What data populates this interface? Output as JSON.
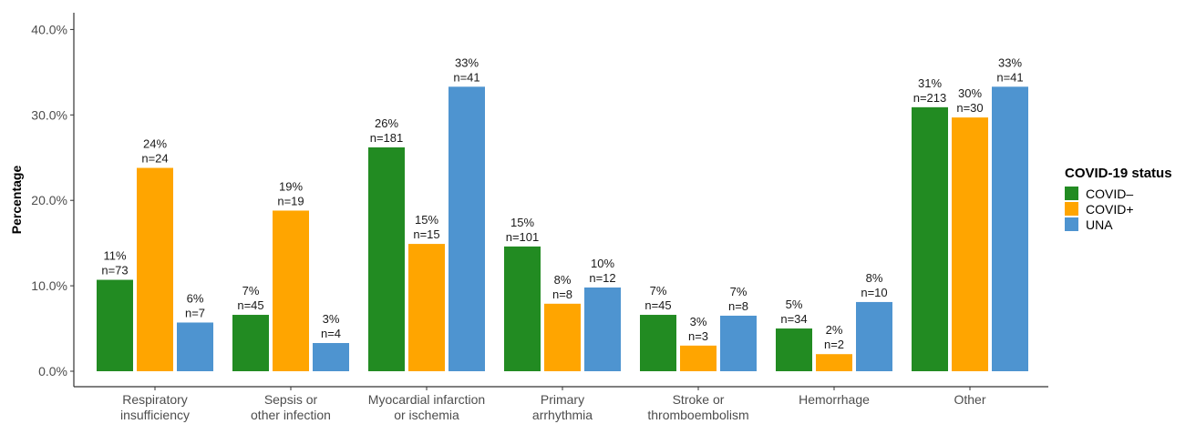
{
  "chart_data": {
    "type": "bar",
    "ylabel": "Percentage",
    "ylim": [
      0,
      42
    ],
    "yticks": [
      "0.0%",
      "10.0%",
      "20.0%",
      "30.0%",
      "40.0%"
    ],
    "categories": [
      [
        "Respiratory",
        "insufficiency"
      ],
      [
        "Sepsis or",
        "other infection"
      ],
      [
        "Myocardial infarction",
        "or ischemia"
      ],
      [
        "Primary",
        "arrhythmia"
      ],
      [
        "Stroke or",
        "thromboembolism"
      ],
      [
        "Hemorrhage"
      ],
      [
        "Other"
      ]
    ],
    "legend": {
      "title": "COVID-19 status",
      "position": "right"
    },
    "series": [
      {
        "name": "COVID–",
        "color": "#228B22",
        "values": [
          10.7,
          6.6,
          26.2,
          14.6,
          6.6,
          5.0,
          30.9
        ],
        "pct_labels": [
          "11%",
          "7%",
          "26%",
          "15%",
          "7%",
          "5%",
          "31%"
        ],
        "n_labels": [
          "n=73",
          "n=45",
          "n=181",
          "n=101",
          "n=45",
          "n=34",
          "n=213"
        ]
      },
      {
        "name": "COVID+",
        "color": "#FFA500",
        "values": [
          23.8,
          18.8,
          14.9,
          7.9,
          3.0,
          2.0,
          29.7
        ],
        "pct_labels": [
          "24%",
          "19%",
          "15%",
          "8%",
          "3%",
          "2%",
          "30%"
        ],
        "n_labels": [
          "n=24",
          "n=19",
          "n=15",
          "n=8",
          "n=3",
          "n=2",
          "n=30"
        ]
      },
      {
        "name": "UNA",
        "color": "#4E94D0",
        "values": [
          5.7,
          3.3,
          33.3,
          9.8,
          6.5,
          8.1,
          33.3
        ],
        "pct_labels": [
          "6%",
          "3%",
          "33%",
          "10%",
          "7%",
          "8%",
          "33%"
        ],
        "n_labels": [
          "n=7",
          "n=4",
          "n=41",
          "n=12",
          "n=8",
          "n=10",
          "n=41"
        ]
      }
    ]
  }
}
